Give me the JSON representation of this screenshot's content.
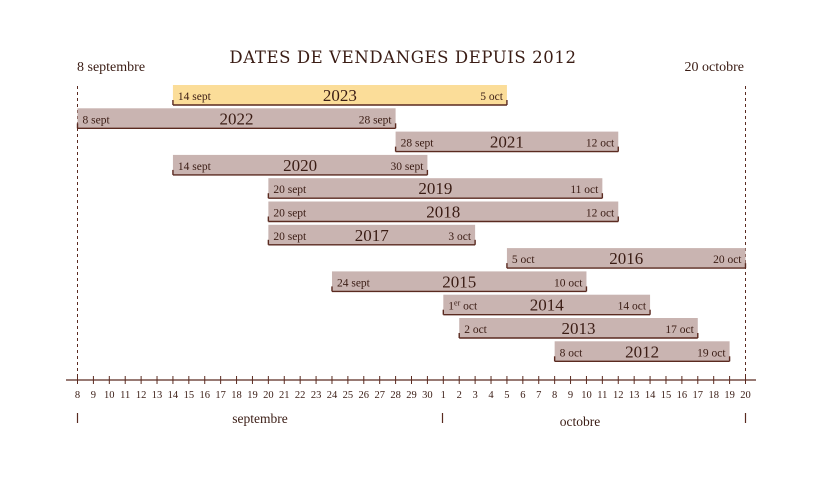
{
  "title": "DATES DE VENDANGES DEPUIS 2012",
  "range_start_label": "8 septembre",
  "range_end_label": "20 octobre",
  "colors": {
    "bar": "#c9b4b1",
    "highlight": "#fbdd99",
    "text": "#3a1c14",
    "line": "#5a2a20"
  },
  "chart_data": {
    "type": "gantt",
    "title": "DATES DE VENDANGES DEPUIS 2012",
    "x_range": [
      "8 sept",
      "20 oct"
    ],
    "month_labels": [
      "septembre",
      "octobre"
    ],
    "tick_labels": [
      "8",
      "9",
      "10",
      "11",
      "12",
      "13",
      "14",
      "15",
      "16",
      "17",
      "18",
      "19",
      "20",
      "21",
      "22",
      "23",
      "24",
      "25",
      "26",
      "27",
      "28",
      "29",
      "30",
      "1",
      "2",
      "3",
      "4",
      "5",
      "6",
      "7",
      "8",
      "9",
      "10",
      "11",
      "12",
      "13",
      "14",
      "15",
      "16",
      "17",
      "18",
      "19",
      "20"
    ],
    "series": [
      {
        "year": "2023",
        "start": 7,
        "end": 28,
        "start_label": "14 sept",
        "end_label": "5 oct",
        "highlight": true
      },
      {
        "year": "2022",
        "start": 1,
        "end": 21,
        "start_label": "8 sept",
        "end_label": "28 sept"
      },
      {
        "year": "2021",
        "start": 21,
        "end": 35,
        "start_label": "28 sept",
        "end_label": "12 oct"
      },
      {
        "year": "2020",
        "start": 7,
        "end": 23,
        "start_label": "14 sept",
        "end_label": "30 sept"
      },
      {
        "year": "2019",
        "start": 13,
        "end": 34,
        "start_label": "20 sept",
        "end_label": "11 oct"
      },
      {
        "year": "2018",
        "start": 13,
        "end": 35,
        "start_label": "20 sept",
        "end_label": "12 oct"
      },
      {
        "year": "2017",
        "start": 13,
        "end": 26,
        "start_label": "20 sept",
        "end_label": "3 oct"
      },
      {
        "year": "2016",
        "start": 28,
        "end": 43,
        "start_label": "5 oct",
        "end_label": "20 oct"
      },
      {
        "year": "2015",
        "start": 17,
        "end": 33,
        "start_label": "24 sept",
        "end_label": "10 oct"
      },
      {
        "year": "2014",
        "start": 24,
        "end": 37,
        "start_label": "1",
        "start_label_sup": "er",
        "start_label_tail": " oct",
        "end_label": "14 oct"
      },
      {
        "year": "2013",
        "start": 25,
        "end": 40,
        "start_label": "2 oct",
        "end_label": "17 oct"
      },
      {
        "year": "2012",
        "start": 31,
        "end": 42,
        "start_label": "8 oct",
        "end_label": "19 oct"
      }
    ]
  }
}
